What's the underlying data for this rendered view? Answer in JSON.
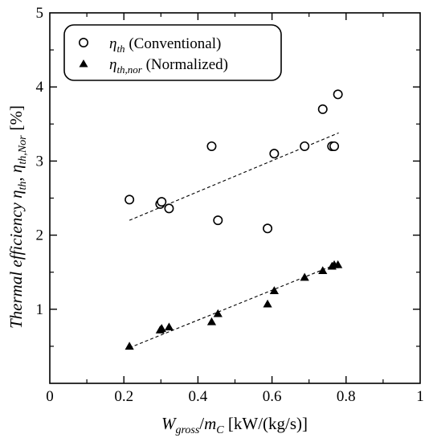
{
  "chart_data": {
    "type": "scatter",
    "xlim": [
      0,
      1
    ],
    "ylim": [
      0,
      5
    ],
    "x_ticks": [
      "0",
      "0.2",
      "0.4",
      "0.6",
      "0.8",
      "1"
    ],
    "y_ticks": [
      "1",
      "2",
      "3",
      "4",
      "5"
    ],
    "xlabel": {
      "main": "W",
      "sub": "gross",
      "slash": "/",
      "main2": "m",
      "sub2": "C",
      "unit": " [kW/(kg/s)]"
    },
    "ylabel": {
      "text": "Thermal efficiency ",
      "eta1": "η",
      "sub1": "th",
      "comma": ", ",
      "eta2": "η",
      "sub2": "th,Nor",
      "unit": "[%]"
    },
    "legend": {
      "position": "top-left",
      "entries": [
        {
          "symbol": "η",
          "sub": "th",
          "label": " (Conventional)"
        },
        {
          "symbol": "η",
          "sub": "th,nor",
          "label": " (Normalized)"
        }
      ]
    },
    "series": [
      {
        "name": "ηth (Conventional)",
        "marker": "open-circle",
        "points": [
          [
            0.215,
            2.48
          ],
          [
            0.298,
            2.42
          ],
          [
            0.302,
            2.45
          ],
          [
            0.322,
            2.36
          ],
          [
            0.437,
            3.2
          ],
          [
            0.454,
            2.2
          ],
          [
            0.588,
            2.09
          ],
          [
            0.606,
            3.1
          ],
          [
            0.688,
            3.2
          ],
          [
            0.737,
            3.7
          ],
          [
            0.762,
            3.2
          ],
          [
            0.768,
            3.2
          ],
          [
            0.778,
            3.9
          ]
        ],
        "trend": [
          [
            0.215,
            2.2
          ],
          [
            0.78,
            3.38
          ]
        ]
      },
      {
        "name": "ηth,nor (Normalized)",
        "marker": "filled-triangle",
        "points": [
          [
            0.215,
            0.5
          ],
          [
            0.298,
            0.72
          ],
          [
            0.302,
            0.74
          ],
          [
            0.322,
            0.76
          ],
          [
            0.437,
            0.83
          ],
          [
            0.454,
            0.94
          ],
          [
            0.588,
            1.07
          ],
          [
            0.606,
            1.25
          ],
          [
            0.688,
            1.43
          ],
          [
            0.737,
            1.52
          ],
          [
            0.762,
            1.58
          ],
          [
            0.768,
            1.6
          ],
          [
            0.778,
            1.6
          ]
        ],
        "trend": [
          [
            0.215,
            0.48
          ],
          [
            0.78,
            1.62
          ]
        ]
      }
    ]
  }
}
